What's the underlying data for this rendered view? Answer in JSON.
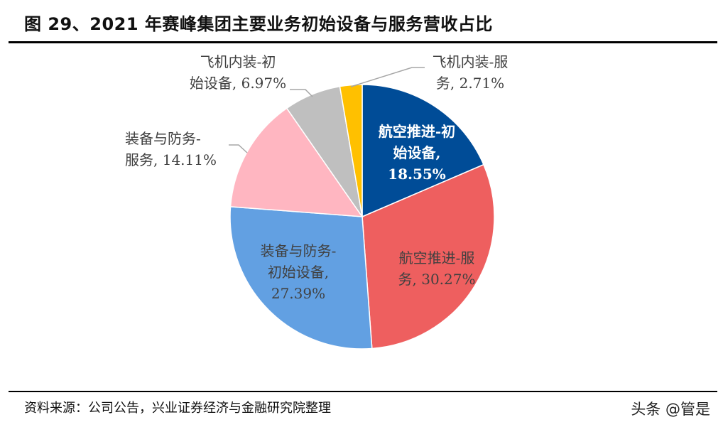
{
  "header": {
    "title": "图 29、2021 年赛峰集团主要业务初始设备与服务营收占比"
  },
  "footer": {
    "source": "资料来源：公司公告，兴业证券经济与金融研究院整理",
    "watermark": "头条 @管是"
  },
  "chart_data": {
    "type": "pie",
    "title": "2021 年赛峰集团主要业务初始设备与服务营收占比",
    "start_angle": "12 o'clock, clockwise",
    "categories": [
      "航空推进-初始设备",
      "航空推进-服务",
      "装备与防务-初始设备",
      "装备与防务-服务",
      "飞机内装-初始设备",
      "飞机内装-服务"
    ],
    "values": [
      18.55,
      30.27,
      27.39,
      14.11,
      6.97,
      2.71
    ],
    "unit": "%",
    "colors": [
      "#004C97",
      "#EE5F5F",
      "#62A0E2",
      "#FFB6C1",
      "#BFBFBF",
      "#FFC000"
    ],
    "legend": "none (data labels on slices)"
  },
  "labels": {
    "aero_init": {
      "line1": "航空推进-初",
      "line2": "始设备,",
      "line3": "18.55%"
    },
    "aero_svc": {
      "line1": "航空推进-服",
      "line2": "务, 30.27%"
    },
    "def_init": {
      "line1": "装备与防务-",
      "line2": "初始设备,",
      "line3": "27.39%"
    },
    "def_svc": {
      "line1": "装备与防务-",
      "line2": "服务, 14.11%"
    },
    "int_init": {
      "line1": "飞机内装-初",
      "line2": "始设备, 6.97%"
    },
    "int_svc": {
      "line1": "飞机内装-服",
      "line2": "务, 2.71%"
    }
  }
}
